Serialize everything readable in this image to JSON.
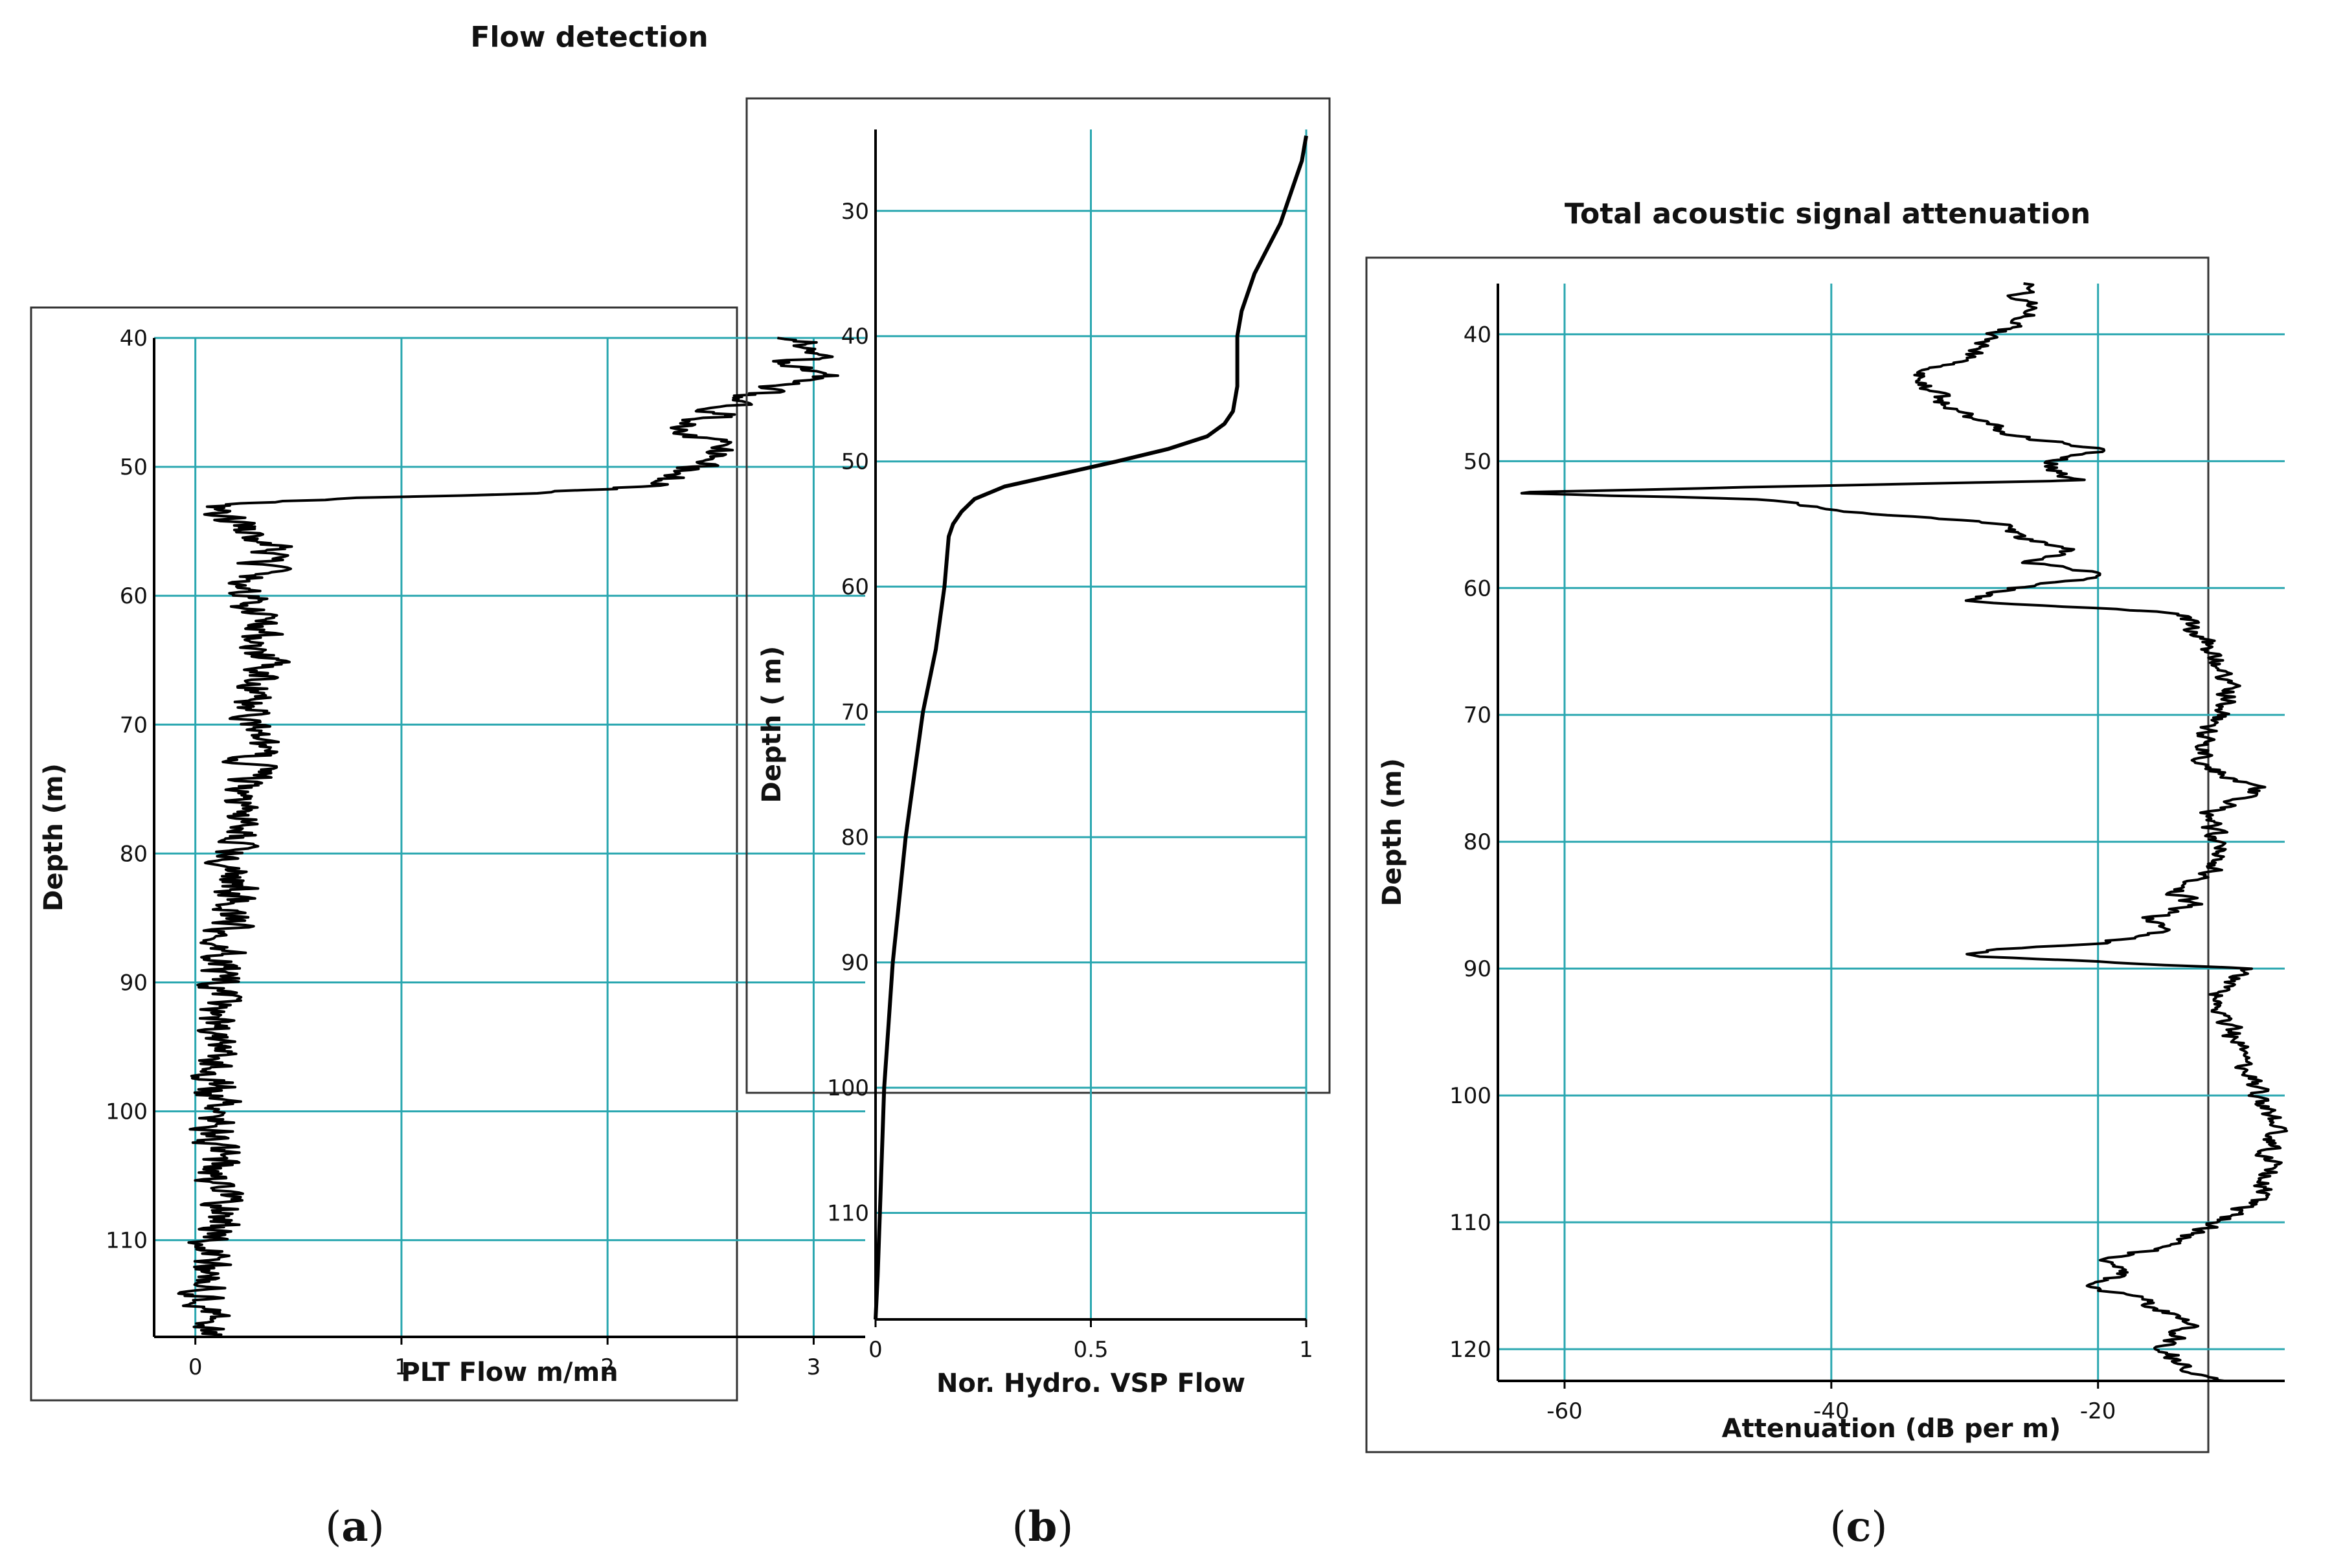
{
  "figure_title": "Flow detection",
  "chart_data": [
    {
      "type": "line",
      "panel": "(a)",
      "panel_letter": "a",
      "title": "",
      "xlabel": "PLT Flow  m/mn",
      "ylabel": "Depth (m)",
      "xlim": [
        -0.2,
        3.25
      ],
      "ylim": [
        40,
        117.5
      ],
      "y_inverted": true,
      "xticks": [
        0,
        1,
        2,
        3
      ],
      "xtick_labels": [
        "0",
        "1",
        "2",
        "3"
      ],
      "yticks": [
        40,
        50,
        60,
        70,
        80,
        90,
        100,
        110
      ],
      "ytick_labels": [
        "40",
        "50",
        "60",
        "70",
        "80",
        "90",
        "100",
        "110"
      ],
      "grid": true,
      "grid_color": "#2aa7b0",
      "line_color": "#000000",
      "noise": 0.09,
      "series": [
        {
          "name": "PLT Flow",
          "depth": [
            40,
            41,
            42,
            43,
            44,
            45,
            46,
            47,
            48,
            49,
            50,
            51,
            51.5,
            52,
            52.5,
            53,
            54,
            56,
            58,
            60,
            62,
            65,
            70,
            75,
            80,
            85,
            88,
            90,
            95,
            100,
            105,
            108,
            110,
            113,
            116,
            117.5
          ],
          "x": [
            2.9,
            3.05,
            2.85,
            3.05,
            2.75,
            2.6,
            2.55,
            2.3,
            2.5,
            2.55,
            2.45,
            2.25,
            2.2,
            1.7,
            0.6,
            0.1,
            0.15,
            0.35,
            0.3,
            0.25,
            0.3,
            0.32,
            0.3,
            0.25,
            0.2,
            0.18,
            0.15,
            0.12,
            0.1,
            0.1,
            0.1,
            0.12,
            0.08,
            0.06,
            0.05,
            0.05
          ]
        }
      ]
    },
    {
      "type": "line",
      "panel": "(b)",
      "panel_letter": "b",
      "title": "",
      "xlabel": "Nor. Hydro. VSP Flow",
      "ylabel": "Depth ( m)",
      "xlim": [
        0,
        1
      ],
      "ylim": [
        23.5,
        118.5
      ],
      "y_inverted": true,
      "xticks": [
        0,
        0.5,
        1
      ],
      "xtick_labels": [
        "0",
        "0.5",
        "1"
      ],
      "yticks": [
        30,
        40,
        50,
        60,
        70,
        80,
        90,
        100,
        110
      ],
      "ytick_labels": [
        "30",
        "40",
        "50",
        "60",
        "70",
        "80",
        "90",
        "100",
        "110"
      ],
      "grid": true,
      "grid_color": "#2aa7b0",
      "line_color": "#000000",
      "noise": 0,
      "series": [
        {
          "name": "Normalized hydrophone VSP flow",
          "depth": [
            24,
            26,
            28,
            31,
            35,
            38,
            40,
            42,
            44,
            46,
            47,
            48,
            49,
            50,
            51,
            52,
            53,
            54,
            55,
            56,
            60,
            65,
            70,
            75,
            80,
            85,
            90,
            95,
            100,
            105,
            110,
            115,
            118.5
          ],
          "x": [
            1.0,
            0.99,
            0.97,
            0.94,
            0.88,
            0.85,
            0.84,
            0.84,
            0.84,
            0.83,
            0.81,
            0.77,
            0.68,
            0.56,
            0.43,
            0.3,
            0.23,
            0.2,
            0.18,
            0.17,
            0.16,
            0.14,
            0.11,
            0.09,
            0.07,
            0.055,
            0.04,
            0.03,
            0.02,
            0.015,
            0.01,
            0.005,
            0.0
          ]
        }
      ]
    },
    {
      "type": "line",
      "panel": "(c)",
      "panel_letter": "c",
      "title": "Total acoustic signal attenuation",
      "xlabel": "Attenuation (dB per m)",
      "ylabel": "Depth (m)",
      "xlim": [
        -65,
        -6
      ],
      "ylim": [
        36,
        122.5
      ],
      "y_inverted": true,
      "xticks": [
        -60,
        -40,
        -20
      ],
      "xtick_labels": [
        "-60",
        "-40",
        "-20"
      ],
      "yticks": [
        40,
        50,
        60,
        70,
        80,
        90,
        100,
        110,
        120
      ],
      "ytick_labels": [
        "40",
        "50",
        "60",
        "70",
        "80",
        "90",
        "100",
        "110",
        "120"
      ],
      "grid": true,
      "grid_color": "#2aa7b0",
      "line_color": "#000000",
      "noise": 0.7,
      "series": [
        {
          "name": "Total acoustic signal attenuation",
          "depth": [
            36,
            37,
            38,
            40,
            42,
            43,
            44,
            46,
            48,
            49,
            50,
            51,
            51.5,
            52,
            52.5,
            53,
            54,
            55,
            56,
            57,
            58,
            59,
            60,
            61,
            62,
            64,
            66,
            68,
            70,
            72,
            74,
            75,
            76,
            78,
            80,
            82,
            84,
            85,
            86,
            87,
            88,
            88.5,
            89,
            90,
            92,
            95,
            97,
            100,
            102,
            105,
            108,
            110,
            112,
            113,
            114,
            115,
            116,
            118,
            120,
            122,
            122.5
          ],
          "x": [
            -25,
            -26,
            -24,
            -28,
            -30,
            -34,
            -33,
            -31,
            -26,
            -20,
            -23,
            -23,
            -21,
            -44,
            -65,
            -45,
            -38,
            -27,
            -26,
            -22,
            -25,
            -19,
            -26,
            -30,
            -14,
            -12,
            -11,
            -10,
            -11,
            -12,
            -12,
            -10,
            -8,
            -12,
            -11,
            -11,
            -14,
            -13,
            -16,
            -15,
            -20,
            -28,
            -30,
            -9,
            -11,
            -10,
            -9,
            -8,
            -7,
            -7,
            -8,
            -11,
            -15,
            -20,
            -18,
            -21,
            -17,
            -13,
            -15,
            -13,
            -11
          ]
        }
      ]
    }
  ]
}
